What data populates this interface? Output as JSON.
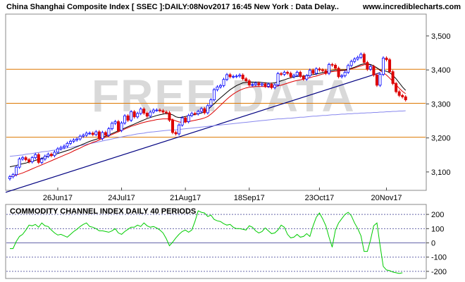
{
  "header": {
    "title": "China Shanghai Composite Index [ SSEC ]:DAILY:08Nov2017 16:45 New York : Data Delay..",
    "site": "www.incrediblecharts.com"
  },
  "watermark": "FREE DATA",
  "colors": {
    "bull": "#0000ff",
    "bear": "#dd0000",
    "ma_fast": "#000000",
    "ma_slow": "#dd0000",
    "ma_long": "#8888ee",
    "trendline": "#000080",
    "hline": "#dd7700",
    "cci": "#00cc00",
    "cci_band": "#6666aa"
  },
  "chart_data": [
    {
      "type": "candlestick",
      "title": "China Shanghai Composite Index [ SSEC ]:DAILY:08Nov2017 16:45 New York : Data Delay..",
      "ylim": [
        3050,
        3560
      ],
      "y_ticks": [
        3100,
        3200,
        3300,
        3400,
        3500
      ],
      "y_tick_labels": [
        "3,100",
        "3,200",
        "3,300",
        "3,400",
        "3,500"
      ],
      "x_tick_labels": [
        "26Jun17",
        "24Jul17",
        "21Aug17",
        "18Sep17",
        "23Oct17",
        "20Nov17"
      ],
      "x_tick_index": [
        15,
        35,
        55,
        75,
        97,
        118
      ],
      "grid": false,
      "horizontal_lines": [
        3402,
        3302,
        3202
      ],
      "trendline": {
        "from": [
          0,
          3040
        ],
        "to": [
          116,
          3392
        ]
      },
      "closes": [
        3086,
        3092,
        3114,
        3138,
        3142,
        3136,
        3130,
        3142,
        3151,
        3128,
        3138,
        3146,
        3152,
        3148,
        3158,
        3168,
        3172,
        3176,
        3184,
        3190,
        3194,
        3197,
        3205,
        3208,
        3214,
        3214,
        3210,
        3218,
        3198,
        3216,
        3208,
        3227,
        3243,
        3248,
        3222,
        3244,
        3265,
        3252,
        3277,
        3262,
        3272,
        3285,
        3273,
        3264,
        3276,
        3282,
        3282,
        3280,
        3276,
        3274,
        3252,
        3216,
        3212,
        3238,
        3259,
        3248,
        3266,
        3272,
        3271,
        3278,
        3286,
        3274,
        3295,
        3312,
        3342,
        3350,
        3354,
        3372,
        3386,
        3380,
        3381,
        3382,
        3385,
        3374,
        3368,
        3356,
        3357,
        3361,
        3356,
        3359,
        3352,
        3358,
        3348,
        3356,
        3389,
        3387,
        3393,
        3390,
        3380,
        3384,
        3393,
        3381,
        3373,
        3383,
        3399,
        3390,
        3403,
        3400,
        3398,
        3390,
        3416,
        3414,
        3405,
        3380,
        3383,
        3393,
        3413,
        3425,
        3432,
        3437,
        3446,
        3422,
        3402,
        3410,
        3385,
        3355,
        3387,
        3435,
        3430,
        3395,
        3360,
        3336,
        3325,
        3321,
        3312
      ],
      "ma_fast": [
        3115,
        3117,
        3119,
        3122,
        3124,
        3126,
        3129,
        3131,
        3134,
        3137,
        3140,
        3143,
        3146,
        3149,
        3151,
        3154,
        3157,
        3160,
        3163,
        3166,
        3170,
        3174,
        3178,
        3182,
        3186,
        3190,
        3193,
        3196,
        3199,
        3202,
        3205,
        3209,
        3213,
        3217,
        3221,
        3225,
        3229,
        3233,
        3237,
        3241,
        3245,
        3249,
        3253,
        3257,
        3260,
        3263,
        3266,
        3268,
        3270,
        3272,
        3270,
        3268,
        3262,
        3260,
        3261,
        3263,
        3265,
        3267,
        3269,
        3271,
        3273,
        3277,
        3283,
        3292,
        3300,
        3310,
        3318,
        3326,
        3334,
        3342,
        3348,
        3354,
        3358,
        3362,
        3363,
        3364,
        3364,
        3364,
        3364,
        3363,
        3362,
        3361,
        3361,
        3362,
        3365,
        3368,
        3371,
        3374,
        3377,
        3379,
        3381,
        3381,
        3382,
        3383,
        3385,
        3386,
        3388,
        3390,
        3392,
        3394,
        3396,
        3398,
        3400,
        3400,
        3400,
        3400,
        3402,
        3405,
        3408,
        3412,
        3416,
        3418,
        3418,
        3416,
        3412,
        3406,
        3400,
        3398,
        3396,
        3392,
        3384,
        3374,
        3362,
        3350,
        3340
      ],
      "ma_slow": [
        3085,
        3088,
        3091,
        3094,
        3097,
        3101,
        3105,
        3109,
        3113,
        3117,
        3121,
        3125,
        3129,
        3133,
        3137,
        3141,
        3145,
        3149,
        3153,
        3157,
        3162,
        3166,
        3170,
        3175,
        3179,
        3183,
        3187,
        3190,
        3194,
        3198,
        3202,
        3206,
        3210,
        3214,
        3218,
        3222,
        3226,
        3230,
        3234,
        3237,
        3240,
        3243,
        3246,
        3248,
        3250,
        3252,
        3254,
        3255,
        3256,
        3256,
        3256,
        3254,
        3250,
        3247,
        3246,
        3247,
        3248,
        3250,
        3252,
        3254,
        3256,
        3259,
        3263,
        3270,
        3278,
        3287,
        3296,
        3305,
        3314,
        3322,
        3329,
        3335,
        3340,
        3344,
        3347,
        3349,
        3350,
        3351,
        3351,
        3351,
        3351,
        3350,
        3350,
        3351,
        3353,
        3355,
        3358,
        3361,
        3364,
        3367,
        3369,
        3371,
        3373,
        3375,
        3377,
        3380,
        3382,
        3385,
        3388,
        3390,
        3393,
        3395,
        3396,
        3397,
        3398,
        3399,
        3400,
        3403,
        3406,
        3409,
        3412,
        3415,
        3416,
        3415,
        3412,
        3406,
        3398,
        3392,
        3385,
        3376,
        3366,
        3356,
        3346,
        3337,
        3330
      ],
      "ma_long": [
        3146,
        3147,
        3148,
        3149,
        3150,
        3152,
        3153,
        3154,
        3156,
        3157,
        3159,
        3160,
        3161,
        3163,
        3164,
        3166,
        3167,
        3169,
        3171,
        3172,
        3174,
        3176,
        3178,
        3179,
        3181,
        3183,
        3185,
        3187,
        3189,
        3191,
        3193,
        3195,
        3197,
        3199,
        3201,
        3203,
        3205,
        3207,
        3208,
        3210,
        3212,
        3213,
        3214,
        3216,
        3217,
        3218,
        3219,
        3220,
        3221,
        3222,
        3223,
        3223,
        3224,
        3225,
        3226,
        3227,
        3228,
        3229,
        3230,
        3231,
        3232,
        3233,
        3234,
        3235,
        3236,
        3237,
        3238,
        3239,
        3240,
        3241,
        3242,
        3243,
        3244,
        3245,
        3246,
        3247,
        3248,
        3249,
        3250,
        3251,
        3252,
        3253,
        3254,
        3255,
        3256,
        3256,
        3257,
        3258,
        3258,
        3259,
        3260,
        3261,
        3261,
        3262,
        3263,
        3264,
        3264,
        3265,
        3266,
        3266,
        3267,
        3268,
        3268,
        3269,
        3270,
        3270,
        3271,
        3271,
        3272,
        3272,
        3273,
        3273,
        3274,
        3274,
        3275,
        3275,
        3276,
        3276,
        3277,
        3277,
        3278,
        3278,
        3279,
        3279,
        3280
      ]
    },
    {
      "type": "line",
      "title": "COMMODITY CHANNEL INDEX DAILY 40 PERIODS",
      "ylim": [
        -240,
        260
      ],
      "y_ticks": [
        200,
        100,
        0,
        -100,
        -200
      ],
      "y_tick_labels": [
        "200",
        "100",
        "0",
        "-100",
        "-200"
      ],
      "band_lines": [
        200,
        100,
        0,
        -100,
        -200
      ],
      "series": [
        {
          "values": [
            -40,
            -40,
            10,
            45,
            60,
            90,
            125,
            120,
            130,
            110,
            140,
            120,
            115,
            90,
            70,
            55,
            60,
            50,
            40,
            60,
            80,
            95,
            115,
            130,
            140,
            115,
            110,
            100,
            85,
            85,
            80,
            75,
            85,
            100,
            70,
            60,
            80,
            95,
            110,
            110,
            125,
            115,
            140,
            120,
            110,
            115,
            105,
            90,
            70,
            30,
            -20,
            5,
            35,
            60,
            80,
            90,
            75,
            90,
            150,
            225,
            215,
            210,
            185,
            195,
            165,
            155,
            150,
            135,
            125,
            130,
            110,
            100,
            100,
            95,
            90,
            120,
            110,
            85,
            70,
            80,
            105,
            85,
            65,
            70,
            90,
            125,
            110,
            60,
            35,
            40,
            60,
            40,
            45,
            65,
            45,
            120,
            180,
            210,
            170,
            120,
            40,
            -30,
            90,
            140,
            170,
            200,
            215,
            190,
            140,
            100,
            50,
            -60,
            -60,
            20,
            120,
            140,
            -20,
            -165,
            -190,
            -195,
            -205,
            -210,
            -215,
            -210
          ]
        }
      ]
    }
  ]
}
